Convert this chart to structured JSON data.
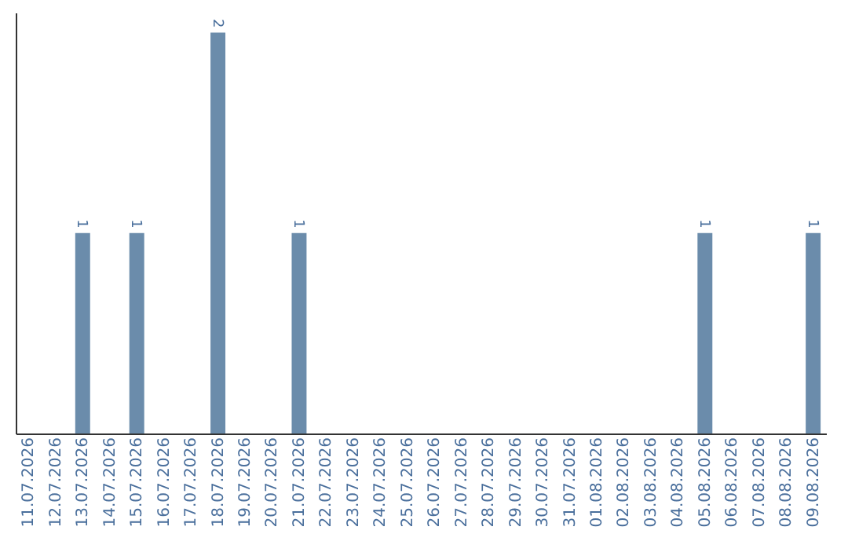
{
  "chart_data": {
    "type": "bar",
    "categories": [
      "11.07.2026",
      "12.07.2026",
      "13.07.2026",
      "14.07.2026",
      "15.07.2026",
      "16.07.2026",
      "17.07.2026",
      "18.07.2026",
      "19.07.2026",
      "20.07.2026",
      "21.07.2026",
      "22.07.2026",
      "23.07.2026",
      "24.07.2026",
      "25.07.2026",
      "26.07.2026",
      "27.07.2026",
      "28.07.2026",
      "29.07.2026",
      "30.07.2026",
      "31.07.2026",
      "01.08.2026",
      "02.08.2026",
      "03.08.2026",
      "04.08.2026",
      "05.08.2026",
      "06.08.2026",
      "07.08.2026",
      "08.08.2026",
      "09.08.2026"
    ],
    "values": [
      0,
      0,
      1,
      0,
      1,
      0,
      0,
      2,
      0,
      0,
      1,
      0,
      0,
      0,
      0,
      0,
      0,
      0,
      0,
      0,
      0,
      0,
      0,
      0,
      0,
      1,
      0,
      0,
      0,
      1
    ],
    "value_labels": [
      null,
      null,
      "1",
      null,
      "1",
      null,
      null,
      "2",
      null,
      null,
      "1",
      null,
      null,
      null,
      null,
      null,
      null,
      null,
      null,
      null,
      null,
      null,
      null,
      null,
      null,
      "1",
      null,
      null,
      null,
      "1"
    ],
    "color": "#6b8cab",
    "ylim": [
      0,
      2.1
    ],
    "tick_labels": "x",
    "grid": false
  }
}
